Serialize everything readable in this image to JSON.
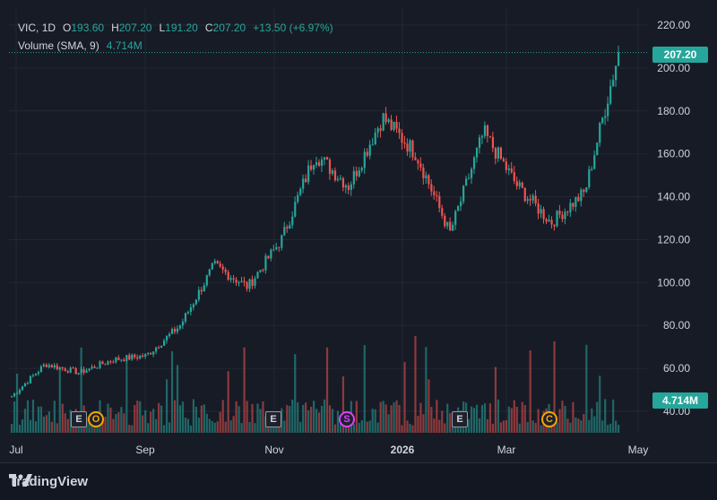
{
  "legend": {
    "symbol": "VIC",
    "interval": "1D",
    "open_label": "O",
    "open": "193.60",
    "high_label": "H",
    "high": "207.20",
    "low_label": "L",
    "low": "191.20",
    "close_label": "C",
    "close": "207.20",
    "change": "+13.50 (+6.97%)",
    "volume_label": "Volume (SMA, 9)",
    "volume_value": "4.714M"
  },
  "price_tag": "207.20",
  "volume_tag": "4.714M",
  "footer": {
    "brand": "TradingView"
  },
  "events": [
    {
      "label": "E",
      "style": "square"
    },
    {
      "label": "O",
      "style": "circle-orange"
    },
    {
      "label": "E",
      "style": "square"
    },
    {
      "label": "S",
      "style": "circle-pink"
    },
    {
      "label": "E",
      "style": "square"
    },
    {
      "label": "C",
      "style": "circle-orange"
    }
  ],
  "colors": {
    "up": "#26a69a",
    "down": "#ef5350",
    "background": "#171b26",
    "grid": "#232733",
    "text": "#d1d4dc"
  },
  "chart_data": {
    "type": "candlestick",
    "y_ticks": [
      "220.00",
      "200.00",
      "180.00",
      "160.00",
      "140.00",
      "120.00",
      "100.00",
      "80.00",
      "60.00",
      "40.00"
    ],
    "ylim": [
      36,
      226
    ],
    "x_ticks": [
      "Jul",
      "Sep",
      "Nov",
      "2026",
      "Mar",
      "May"
    ],
    "grid": true,
    "last_close": 207.2,
    "last_volume": "4.714M",
    "series": [
      {
        "name": "VIC",
        "points_approx": [
          {
            "x": "Jul",
            "y": 47
          },
          {
            "x": "Aug",
            "y": 62
          },
          {
            "x": "Aug",
            "y": 58
          },
          {
            "x": "Sep",
            "y": 64
          },
          {
            "x": "Sep",
            "y": 66
          },
          {
            "x": "Oct",
            "y": 80
          },
          {
            "x": "Oct",
            "y": 108
          },
          {
            "x": "Nov",
            "y": 98
          },
          {
            "x": "Nov",
            "y": 120
          },
          {
            "x": "Dec",
            "y": 160
          },
          {
            "x": "Dec",
            "y": 145
          },
          {
            "x": "2026",
            "y": 177
          },
          {
            "x": "Jan",
            "y": 160
          },
          {
            "x": "Feb",
            "y": 123
          },
          {
            "x": "Feb",
            "y": 170
          },
          {
            "x": "Mar",
            "y": 145
          },
          {
            "x": "Mar",
            "y": 128
          },
          {
            "x": "Apr",
            "y": 142
          },
          {
            "x": "Apr",
            "y": 207.2
          }
        ]
      }
    ]
  }
}
